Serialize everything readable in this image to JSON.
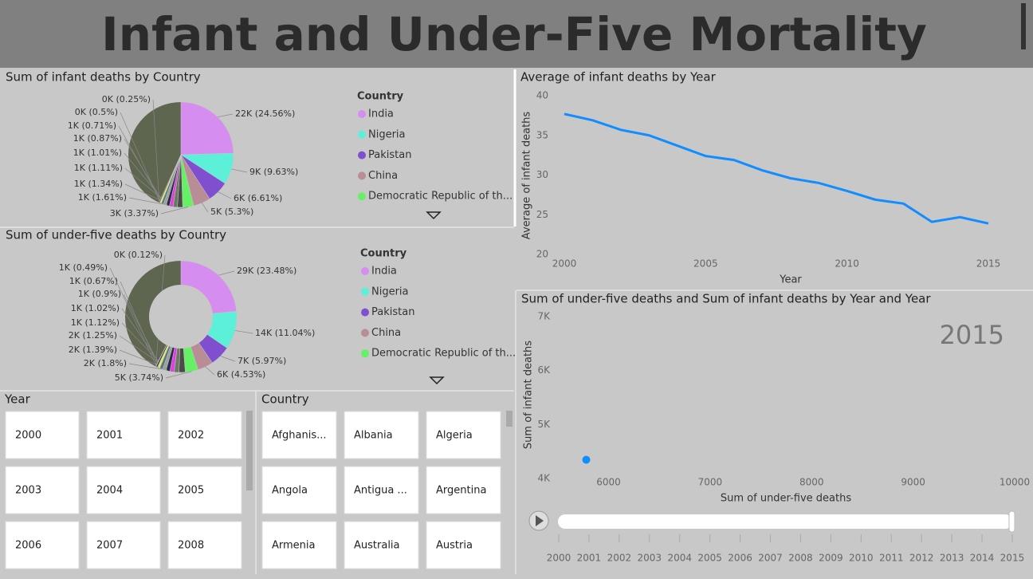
{
  "title": "Infant and Under-Five Mortality",
  "chart_data": [
    {
      "type": "pie",
      "title": "Sum of infant deaths by Country",
      "legend_title": "Country",
      "legend": [
        {
          "name": "India",
          "color": "#d58df0"
        },
        {
          "name": "Nigeria",
          "color": "#5cf0d8"
        },
        {
          "name": "Pakistan",
          "color": "#7f4fcf"
        },
        {
          "name": "China",
          "color": "#b88d95"
        },
        {
          "name": "Democratic Republic of th...",
          "color": "#66f066"
        }
      ],
      "values": [
        24.56,
        9.63,
        6.61,
        5.3,
        3.37,
        1.61,
        1.34,
        1.11,
        1.01,
        0.87,
        0.71,
        0.5,
        0.25
      ],
      "value_labels": [
        "22K (24.56%)",
        "9K (9.63%)",
        "6K (6.61%)",
        "5K (5.3%)",
        "3K (3.37%)",
        "1K (1.61%)",
        "1K (1.34%)",
        "1K (1.11%)",
        "1K (1.01%)",
        "1K (0.87%)",
        "1K (0.71%)",
        "0K (0.5%)",
        "0K (0.25%)"
      ],
      "colors": [
        "#d58df0",
        "#5cf0d8",
        "#7f4fcf",
        "#b88d95",
        "#66f066",
        "#4a4a4a",
        "#6b7a5f",
        "#e040e0",
        "#2a2a4a",
        "#9aa0a0",
        "#5a7a7a",
        "#e8e860",
        "#404060"
      ]
    },
    {
      "type": "donut",
      "title": "Sum of under-five deaths by Country",
      "legend_title": "Country",
      "legend": [
        {
          "name": "India",
          "color": "#d58df0"
        },
        {
          "name": "Nigeria",
          "color": "#5cf0d8"
        },
        {
          "name": "Pakistan",
          "color": "#7f4fcf"
        },
        {
          "name": "China",
          "color": "#b88d95"
        },
        {
          "name": "Democratic Republic of th...",
          "color": "#66f066"
        }
      ],
      "values": [
        23.48,
        11.04,
        5.97,
        4.53,
        3.74,
        1.8,
        1.39,
        1.25,
        1.12,
        1.02,
        0.9,
        0.67,
        0.49,
        0.12
      ],
      "value_labels": [
        "29K (23.48%)",
        "14K (11.04%)",
        "7K (5.97%)",
        "6K (4.53%)",
        "5K (3.74%)",
        "2K (1.8%)",
        "2K (1.39%)",
        "2K (1.25%)",
        "1K (1.12%)",
        "1K (1.02%)",
        "1K (0.9%)",
        "1K (0.67%)",
        "1K (0.49%)",
        "0K (0.12%)"
      ],
      "colors": [
        "#d58df0",
        "#5cf0d8",
        "#7f4fcf",
        "#b88d95",
        "#66f066",
        "#4a4a4a",
        "#6b7a5f",
        "#e040e0",
        "#2a2a4a",
        "#9aa0a0",
        "#5a7a7a",
        "#e8e860",
        "#404060",
        "#8a6a4a"
      ]
    },
    {
      "type": "line",
      "title": "Average of infant deaths by Year",
      "x_label": "Year",
      "y_label": "Average of infant deaths",
      "x": [
        2000,
        2001,
        2002,
        2003,
        2004,
        2005,
        2006,
        2007,
        2008,
        2009,
        2010,
        2011,
        2012,
        2013,
        2014,
        2015
      ],
      "values": [
        37.7,
        36.9,
        35.7,
        35.0,
        33.7,
        32.4,
        31.9,
        30.6,
        29.6,
        29.0,
        28.0,
        26.9,
        26.4,
        24.1,
        24.7,
        23.9
      ],
      "color": "#118dff",
      "xlim": [
        2000,
        2015
      ],
      "xticks": [
        2000,
        2005,
        2010,
        2015
      ],
      "ylim": [
        20,
        40
      ],
      "yticks": [
        20,
        25,
        30,
        35,
        40
      ]
    },
    {
      "type": "scatter",
      "title": "Sum of under-five deaths and Sum of infant deaths by Year and Year",
      "x_label": "Sum of under-five deaths",
      "y_label": "Sum of infant deaths",
      "frame_label": "2015",
      "x": [
        5780
      ],
      "values": [
        4350
      ],
      "color": "#118dff",
      "xlim": [
        5250,
        10000
      ],
      "xticks": [
        6000,
        7000,
        8000,
        9000,
        10000
      ],
      "ylim": [
        3900,
        7000
      ],
      "yticks": [
        {
          "value": 4000,
          "label": "4K"
        },
        {
          "value": 5000,
          "label": "5K"
        },
        {
          "value": 6000,
          "label": "6K"
        },
        {
          "value": 7000,
          "label": "7K"
        }
      ]
    }
  ],
  "year_slicer": {
    "title": "Year",
    "items": [
      "2000",
      "2001",
      "2002",
      "2003",
      "2004",
      "2005",
      "2006",
      "2007",
      "2008"
    ]
  },
  "country_slicer": {
    "title": "Country",
    "items": [
      "Afghanis...",
      "Albania",
      "Algeria",
      "Angola",
      "Antigua ...",
      "Argentina",
      "Armenia",
      "Australia",
      "Austria"
    ]
  },
  "play_axis": {
    "years": [
      "2000",
      "2001",
      "2002",
      "2003",
      "2004",
      "2005",
      "2006",
      "2007",
      "2008",
      "2009",
      "2010",
      "2011",
      "2012",
      "2013",
      "2014",
      "2015"
    ]
  }
}
